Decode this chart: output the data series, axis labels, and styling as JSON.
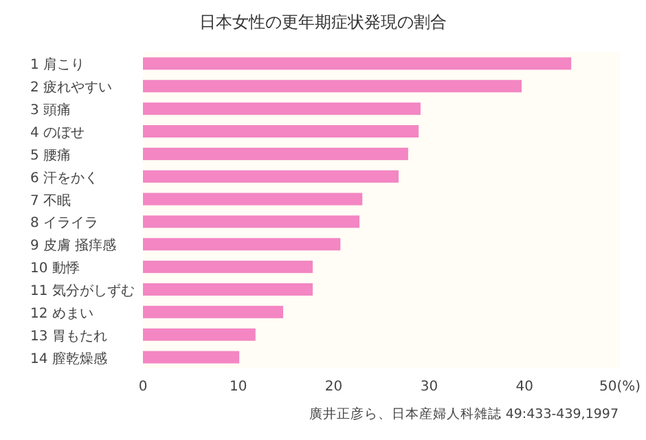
{
  "chart_data": {
    "type": "bar",
    "orientation": "horizontal",
    "title": "日本女性の更年期症状発現の割合",
    "categories": [
      "1 肩こり",
      "2 疲れやすい",
      "3 頭痛",
      "4 のぼせ",
      "5 腰痛",
      "6 汗をかく",
      "7 不眠",
      "8 イライラ",
      "9 皮膚 掻痒感",
      "10 動悸",
      "11 気分がしずむ",
      "12 めまい",
      "13 胃もたれ",
      "14 膣乾燥感"
    ],
    "values": [
      44.9,
      39.7,
      29.1,
      28.9,
      27.8,
      26.8,
      23.0,
      22.7,
      20.7,
      17.8,
      17.8,
      14.7,
      11.8,
      10.1
    ],
    "color": "#f386c3",
    "xlim": [
      0,
      50
    ],
    "xticks": [
      0,
      10,
      20,
      30,
      40,
      {
        "value": 50,
        "label": "50(%)"
      }
    ],
    "grid": false,
    "annotations": [
      "廣井正彦ら、日本産婦人科雑誌 49:433-439,1997"
    ]
  }
}
